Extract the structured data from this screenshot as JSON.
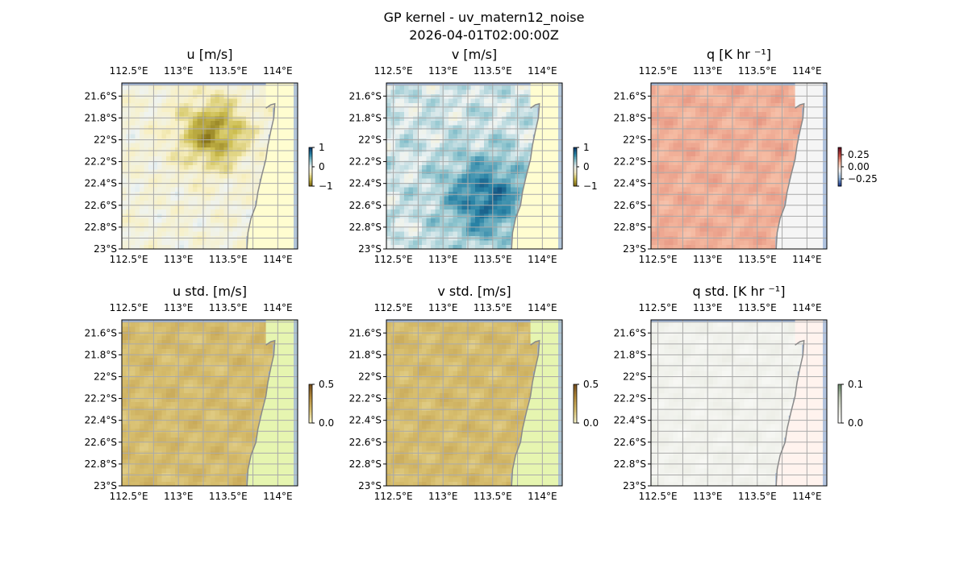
{
  "figure": {
    "title_line1": "GP kernel - uv_matern12_noise",
    "title_line2": "2026-04-01T02:00:00Z"
  },
  "colors": {
    "ocean": "#9fb6da",
    "land_mask": "#fffdd0",
    "grid": "#aaaaaa",
    "coastline": "#8a8a8a",
    "frame": "#000000"
  },
  "chart_data": [
    {
      "type": "heatmap",
      "title": "u [m/s]",
      "row": 0,
      "col": 0,
      "xlim": [
        112.43,
        114.2
      ],
      "ylim": [
        -23.0,
        -21.48
      ],
      "xticks": [
        "112.5°E",
        "113°E",
        "113.5°E",
        "114°E"
      ],
      "xtick_values": [
        112.5,
        113.0,
        113.5,
        114.0
      ],
      "yticks": [
        "21.6°S",
        "21.8°S",
        "22°S",
        "22.2°S",
        "22.4°S",
        "22.6°S",
        "22.8°S",
        "23°S"
      ],
      "ytick_values": [
        -21.6,
        -21.8,
        -22.0,
        -22.2,
        -22.4,
        -22.6,
        -22.8,
        -23.0
      ],
      "x_axis_top": true,
      "x_axis_bottom": true,
      "colormap": "yellow-white-teal (diverging)",
      "colorbar": {
        "ticks": [
          "1",
          "0",
          "−1"
        ],
        "range": [
          -1,
          1
        ]
      },
      "land_fill": "#fffdd0",
      "grid": true
    },
    {
      "type": "heatmap",
      "title": "v [m/s]",
      "row": 0,
      "col": 1,
      "xlim": [
        112.43,
        114.2
      ],
      "ylim": [
        -23.0,
        -21.48
      ],
      "xticks": [
        "112.5°E",
        "113°E",
        "113.5°E",
        "114°E"
      ],
      "xtick_values": [
        112.5,
        113.0,
        113.5,
        114.0
      ],
      "yticks": [
        "21.6°S",
        "21.8°S",
        "22°S",
        "22.2°S",
        "22.4°S",
        "22.6°S",
        "22.8°S",
        "23°S"
      ],
      "ytick_values": [
        -21.6,
        -21.8,
        -22.0,
        -22.2,
        -22.4,
        -22.6,
        -22.8,
        -23.0
      ],
      "x_axis_top": true,
      "x_axis_bottom": true,
      "colormap": "yellow-white-teal (diverging)",
      "colorbar": {
        "ticks": [
          "1",
          "0",
          "−1"
        ],
        "range": [
          -1,
          1
        ]
      },
      "land_fill": "#fffdd0",
      "grid": true
    },
    {
      "type": "heatmap",
      "title": "q [K hr ⁻¹]",
      "row": 0,
      "col": 2,
      "xlim": [
        112.43,
        114.2
      ],
      "ylim": [
        -23.0,
        -21.48
      ],
      "xticks": [
        "112.5°E",
        "113°E",
        "113.5°E",
        "114°E"
      ],
      "xtick_values": [
        112.5,
        113.0,
        113.5,
        114.0
      ],
      "yticks": [
        "21.6°S",
        "21.8°S",
        "22°S",
        "22.2°S",
        "22.4°S",
        "22.6°S",
        "22.8°S",
        "23°S"
      ],
      "ytick_values": [
        -21.6,
        -21.8,
        -22.0,
        -22.2,
        -22.4,
        -22.6,
        -22.8,
        -23.0
      ],
      "x_axis_top": true,
      "x_axis_bottom": true,
      "colormap": "blue-white-red (diverging)",
      "colorbar": {
        "ticks": [
          "0.25",
          "0.00",
          "−0.25"
        ],
        "range": [
          -0.4,
          0.4
        ]
      },
      "land_fill": "#f5f5f5",
      "grid": true
    },
    {
      "type": "heatmap",
      "title": "u std. [m/s]",
      "row": 1,
      "col": 0,
      "xlim": [
        112.43,
        114.2
      ],
      "ylim": [
        -23.0,
        -21.48
      ],
      "xticks": [
        "112.5°E",
        "113°E",
        "113.5°E",
        "114°E"
      ],
      "xtick_values": [
        112.5,
        113.0,
        113.5,
        114.0
      ],
      "yticks": [
        "21.6°S",
        "21.8°S",
        "22°S",
        "22.2°S",
        "22.4°S",
        "22.6°S",
        "22.8°S",
        "23°S"
      ],
      "ytick_values": [
        -21.6,
        -21.8,
        -22.0,
        -22.2,
        -22.4,
        -22.6,
        -22.8,
        -23.0
      ],
      "x_axis_top": true,
      "x_axis_bottom": true,
      "colormap": "pale-yellow to brown (sequential)",
      "colorbar": {
        "ticks": [
          "0.5",
          "0.0"
        ],
        "range": [
          0,
          0.5
        ]
      },
      "land_fill": "#e6f5b0",
      "grid": true
    },
    {
      "type": "heatmap",
      "title": "v std. [m/s]",
      "row": 1,
      "col": 1,
      "xlim": [
        112.43,
        114.2
      ],
      "ylim": [
        -23.0,
        -21.48
      ],
      "xticks": [
        "112.5°E",
        "113°E",
        "113.5°E",
        "114°E"
      ],
      "xtick_values": [
        112.5,
        113.0,
        113.5,
        114.0
      ],
      "yticks": [
        "21.6°S",
        "21.8°S",
        "22°S",
        "22.2°S",
        "22.4°S",
        "22.6°S",
        "22.8°S",
        "23°S"
      ],
      "ytick_values": [
        -21.6,
        -21.8,
        -22.0,
        -22.2,
        -22.4,
        -22.6,
        -22.8,
        -23.0
      ],
      "x_axis_top": true,
      "x_axis_bottom": true,
      "colormap": "pale-yellow to brown (sequential)",
      "colorbar": {
        "ticks": [
          "0.5",
          "0.0"
        ],
        "range": [
          0,
          0.5
        ]
      },
      "land_fill": "#e6f5b0",
      "grid": true
    },
    {
      "type": "heatmap",
      "title": "q std. [K hr ⁻¹]",
      "row": 1,
      "col": 2,
      "xlim": [
        112.43,
        114.2
      ],
      "ylim": [
        -23.0,
        -21.48
      ],
      "xticks": [
        "112.5°E",
        "113°E",
        "113.5°E",
        "114°E"
      ],
      "xtick_values": [
        112.5,
        113.0,
        113.5,
        114.0
      ],
      "yticks": [
        "21.6°S",
        "21.8°S",
        "22°S",
        "22.2°S",
        "22.4°S",
        "22.6°S",
        "22.8°S",
        "23°S"
      ],
      "ytick_values": [
        -21.6,
        -21.8,
        -22.0,
        -22.2,
        -22.4,
        -22.6,
        -22.8,
        -23.0
      ],
      "x_axis_top": true,
      "x_axis_bottom": true,
      "colormap": "white to grey-green (sequential)",
      "colorbar": {
        "ticks": [
          "0.1",
          "0.0"
        ],
        "range": [
          0,
          0.1
        ]
      },
      "land_fill": "#fff3ee",
      "grid": true
    }
  ]
}
